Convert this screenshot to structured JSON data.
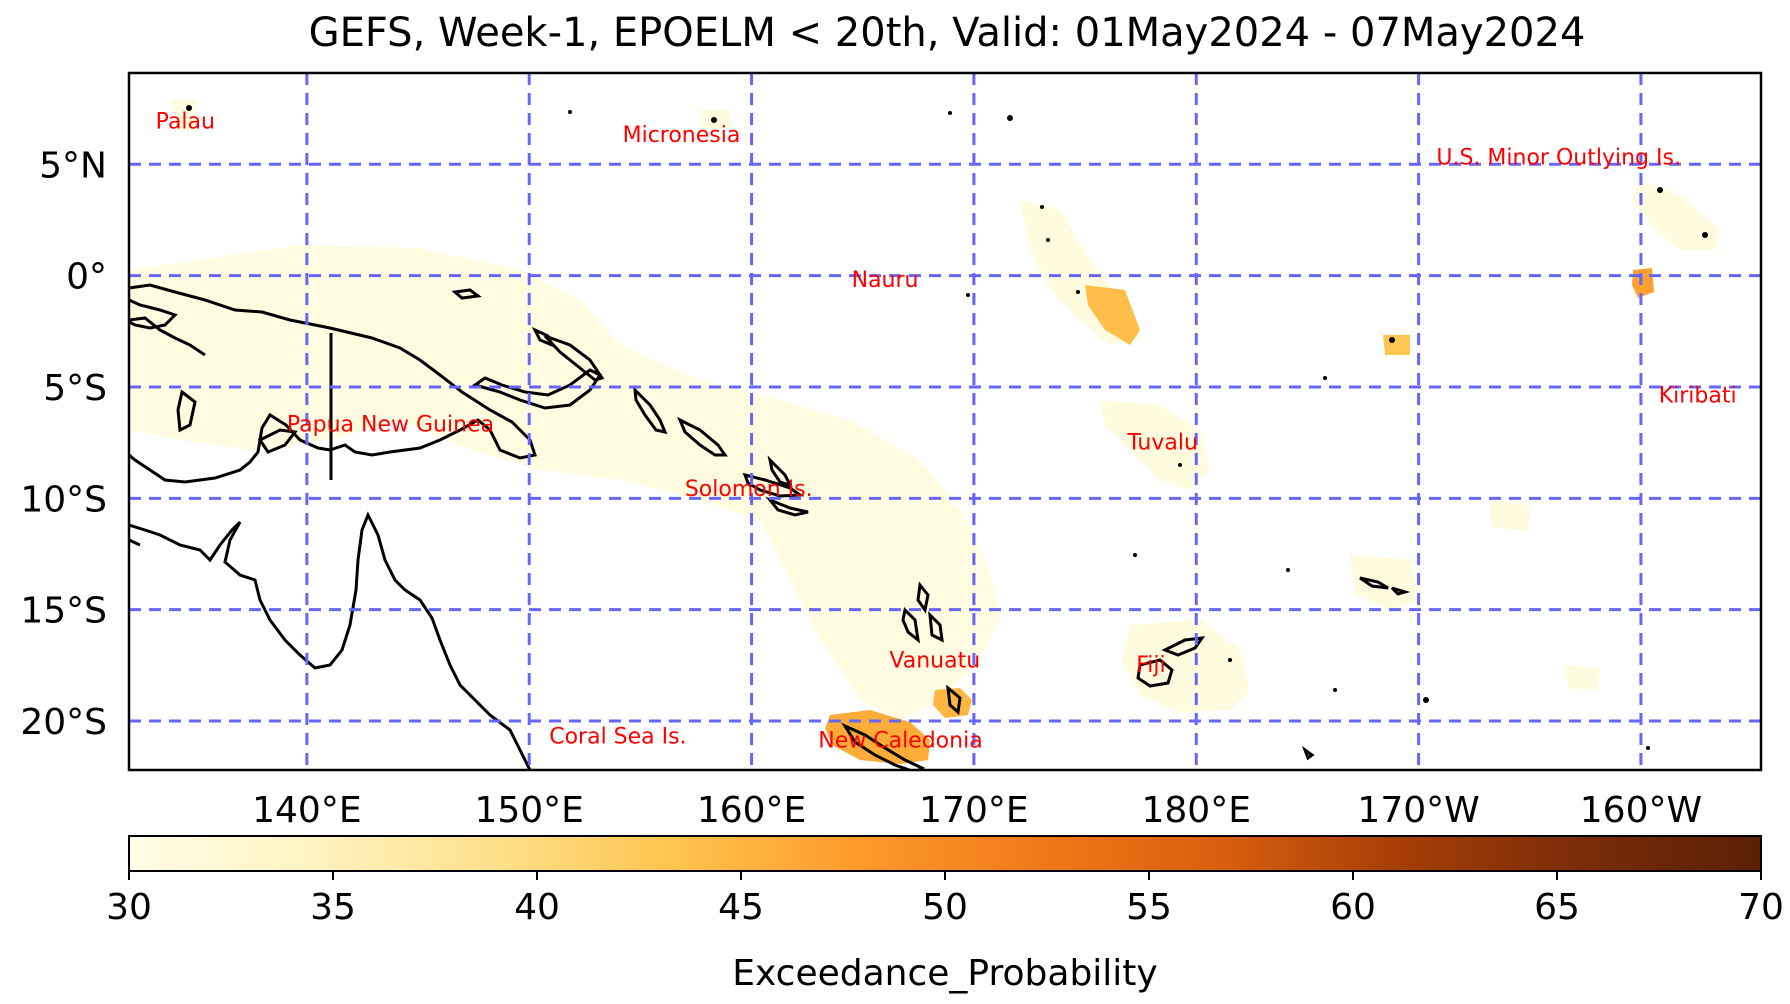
{
  "title": "GEFS, Week-1, EPOELM < 20th, Valid: 01May2024 - 07May2024",
  "map": {
    "lat_range": [
      -22.2,
      9.1
    ],
    "lon_range": [
      132,
      205.4
    ],
    "grid_color": "#6666ff",
    "land_line_color": "#000000",
    "lat_ticks": [
      {
        "lat": 5,
        "label": "5°N"
      },
      {
        "lat": 0,
        "label": "0°"
      },
      {
        "lat": -5,
        "label": "5°S"
      },
      {
        "lat": -10,
        "label": "10°S"
      },
      {
        "lat": -15,
        "label": "15°S"
      },
      {
        "lat": -20,
        "label": "20°S"
      }
    ],
    "lon_ticks": [
      {
        "lon": 140,
        "label": "140°E"
      },
      {
        "lon": 150,
        "label": "150°E"
      },
      {
        "lon": 160,
        "label": "160°E"
      },
      {
        "lon": 170,
        "label": "170°E"
      },
      {
        "lon": 180,
        "label": "180°E"
      },
      {
        "lon": 190,
        "label": "170°W"
      },
      {
        "lon": 200,
        "label": "160°W"
      }
    ],
    "place_labels": [
      {
        "name": "Palau",
        "lon": 133.2,
        "lat": 6.6
      },
      {
        "name": "Micronesia",
        "lon": 154.2,
        "lat": 6.0
      },
      {
        "name": "U.S. Minor Outlying Is.",
        "lon": 190.8,
        "lat": 5.0
      },
      {
        "name": "Nauru",
        "lon": 164.5,
        "lat": -0.5
      },
      {
        "name": "Kiribati",
        "lon": 200.8,
        "lat": -5.7
      },
      {
        "name": "Papua New Guinea",
        "lon": 139.1,
        "lat": -7.0
      },
      {
        "name": "Tuvalu",
        "lon": 176.9,
        "lat": -7.8
      },
      {
        "name": "Solomon Is.",
        "lon": 157.0,
        "lat": -9.9
      },
      {
        "name": "Vanuatu",
        "lon": 166.2,
        "lat": -17.6
      },
      {
        "name": "Fiji",
        "lon": 177.3,
        "lat": -17.8
      },
      {
        "name": "Coral Sea Is.",
        "lon": 150.9,
        "lat": -21.0
      },
      {
        "name": "New Caledonia",
        "lon": 163.0,
        "lat": -21.2
      }
    ]
  },
  "colorbar": {
    "label": "Exceedance_Probability",
    "min": 30,
    "max": 70,
    "ticks": [
      "30",
      "35",
      "40",
      "45",
      "50",
      "55",
      "60",
      "65",
      "70"
    ],
    "colors": [
      "#fffde6",
      "#fff3c2",
      "#fee08b",
      "#fec44f",
      "#fd9b2a",
      "#f07a1a",
      "#d95f0e",
      "#a63e06",
      "#7a2c08",
      "#5a1f06"
    ]
  },
  "probability_areas": [
    {
      "name": "png-solomon-band",
      "value": 30.5
    },
    {
      "name": "marshall-band",
      "value": 31
    },
    {
      "name": "tuvalu-band",
      "value": 31
    },
    {
      "name": "vanuatu-hotspot",
      "value": 45
    },
    {
      "name": "new-caledonia-hotspot",
      "value": 46
    },
    {
      "name": "kiribati-hotspot",
      "value": 47
    },
    {
      "name": "nauru-east-hotspot",
      "value": 44
    },
    {
      "name": "phoenix-hotspot",
      "value": 43
    }
  ]
}
